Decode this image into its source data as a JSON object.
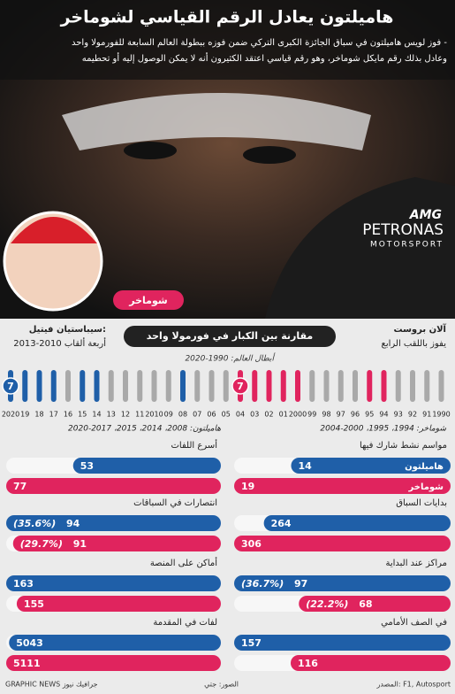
{
  "header": {
    "title": "هاميلتون يعادل الرقم القياسي لشوماخر",
    "intro": [
      "فوز لويس هاميلتون في سباق الجائزة الكبرى التركي ضمن فوزه ببطولة العالم السابعة للفورمولا واحد -",
      "وعادل بذلك رقم مايكل شوماخر، وهو رقم قياسي اعتقد الكثيرون أنه لا يمكن الوصول إليه أو تحطيمه"
    ]
  },
  "photo": {
    "logo_top": "AMG",
    "logo_main": "PETRONAS",
    "logo_sub": "MOTORSPORT",
    "caption": "شوماخر"
  },
  "timeline": {
    "heading": "مقارنة بين الكبار في فورمولا واحد",
    "left_name": "سيباستيان فيتيل:",
    "left_note": "أربعة ألقاب 2010-2013",
    "right_name": "آلان بروست",
    "right_note": "يفوز باللقب الرابع",
    "axis_title": "أبطال العالم: 1990-2020",
    "years": [
      "2020",
      "19",
      "18",
      "17",
      "16",
      "15",
      "14",
      "13",
      "12",
      "11",
      "2010",
      "09",
      "08",
      "07",
      "06",
      "05",
      "04",
      "03",
      "02",
      "01",
      "2000",
      "99",
      "98",
      "97",
      "96",
      "95",
      "94",
      "93",
      "92",
      "91",
      "1990"
    ],
    "colors": [
      "#1f5fa8",
      "#1f5fa8",
      "#1f5fa8",
      "#1f5fa8",
      "#a9a9a9",
      "#1f5fa8",
      "#1f5fa8",
      "#a9a9a9",
      "#a9a9a9",
      "#a9a9a9",
      "#a9a9a9",
      "#a9a9a9",
      "#1f5fa8",
      "#a9a9a9",
      "#a9a9a9",
      "#a9a9a9",
      "#e0245e",
      "#e0245e",
      "#e0245e",
      "#e0245e",
      "#e0245e",
      "#a9a9a9",
      "#a9a9a9",
      "#a9a9a9",
      "#a9a9a9",
      "#e0245e",
      "#e0245e",
      "#a9a9a9",
      "#a9a9a9",
      "#a9a9a9",
      "#a9a9a9"
    ],
    "hamilton_count": "7",
    "schumacher_count": "7",
    "hamilton_years": "هاميلتون: 2008، 2014، 2015، 2017-2020",
    "schumacher_years": "شوماخر: 1994، 1995، 2000-2004"
  },
  "legend": {
    "hamilton": "هاميلتون",
    "hamilton_color": "#1f5fa8",
    "schumacher": "شوماخر",
    "schumacher_color": "#e0245e"
  },
  "stats": [
    {
      "title": "مواسم نشط شارك فيها",
      "hamilton": 14,
      "schumacher": 19
    },
    {
      "title": "بدايات السباق",
      "hamilton": 264,
      "schumacher": 306
    },
    {
      "title": "مراكز عند البداية",
      "hamilton": 97,
      "hamilton_note": "(36.7%)",
      "schumacher": 68,
      "schumacher_note": "(22.2%)"
    },
    {
      "title": "في الصف الأمامي",
      "hamilton": 157,
      "schumacher": 116
    },
    {
      "title": "أسرع اللفات",
      "hamilton": 53,
      "schumacher": 77
    },
    {
      "title": "انتصارات في السباقات",
      "hamilton": 94,
      "hamilton_note": "(35.6%)",
      "schumacher": 91,
      "schumacher_note": "(29.7%)"
    },
    {
      "title": "أماكن على المنصة",
      "hamilton": 163,
      "schumacher": 155
    },
    {
      "title": "لفات في المقدمة",
      "hamilton": 5043,
      "schumacher": 5111
    }
  ],
  "footer": {
    "source": "المصدر: F1, Autosport",
    "photos": "الصور: جتي",
    "brand": "GRAPHIC NEWS جرافيك نيوز"
  }
}
